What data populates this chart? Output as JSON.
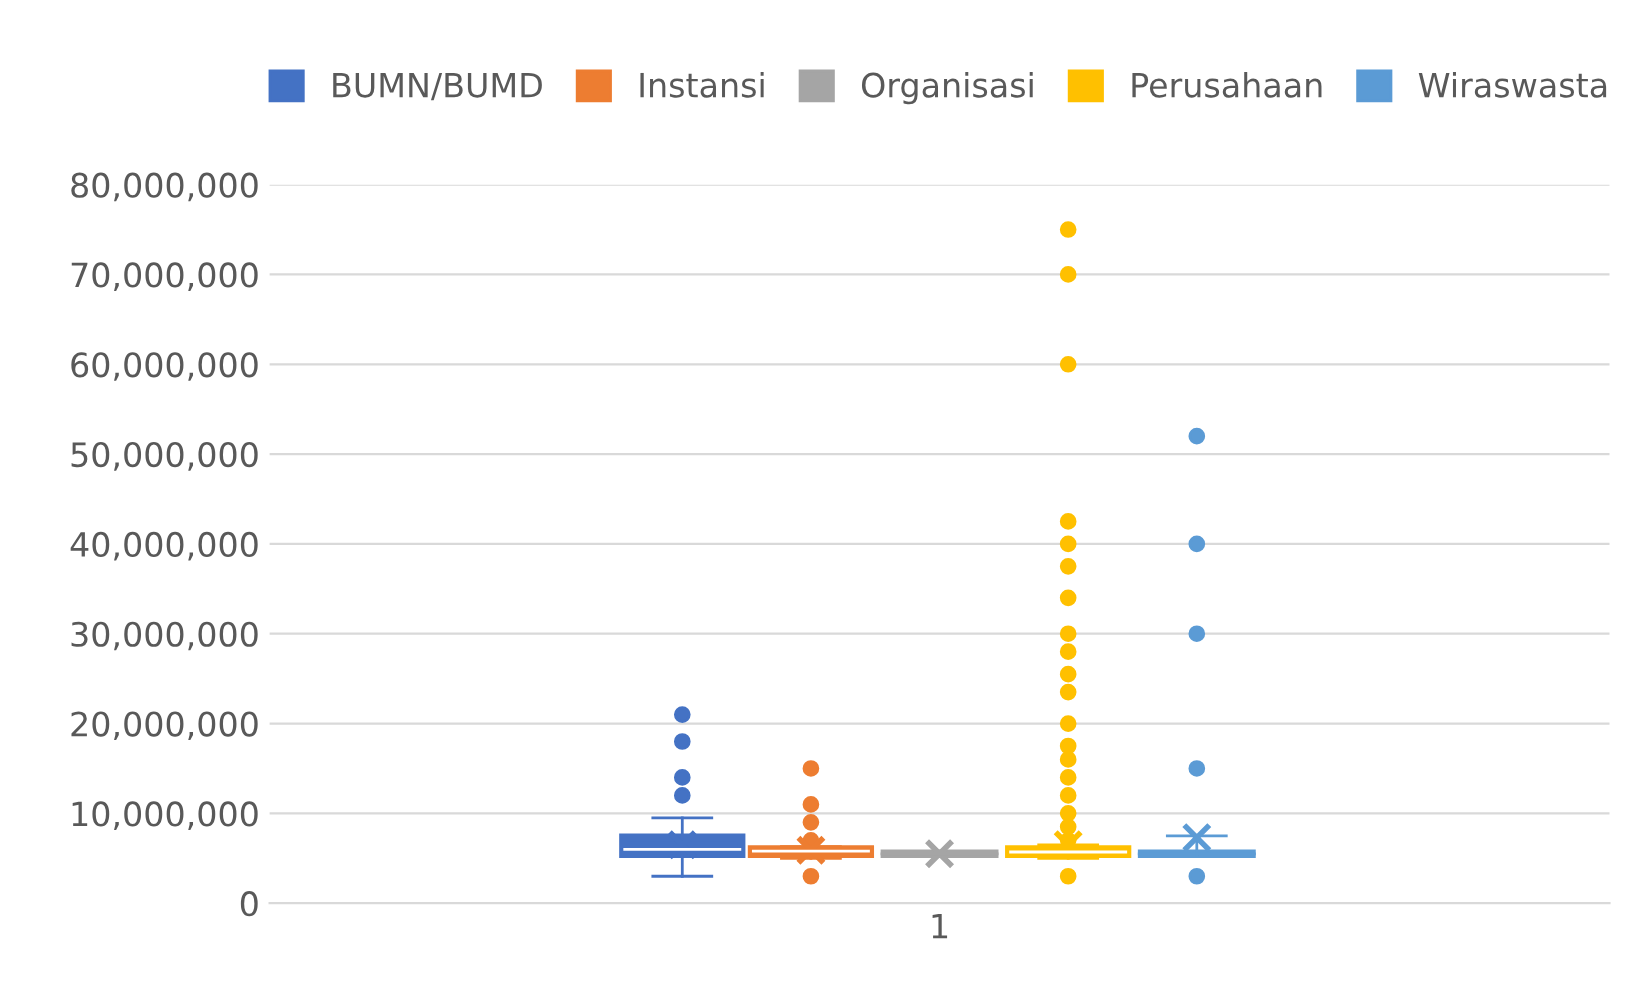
{
  "chart_data": {
    "type": "box",
    "categories": [
      "1"
    ],
    "series": [
      {
        "name": "BUMN/BUMD",
        "color": "#4472c4",
        "boxes": [
          {
            "low": 3000000,
            "q1": 5500000,
            "median": 6000000,
            "q3": 7300000,
            "high": 9500000,
            "mean": 6500000,
            "outliers": [
              12000000,
              14000000,
              18000000,
              21000000
            ]
          }
        ]
      },
      {
        "name": "Instansi",
        "color": "#ed7d31",
        "boxes": [
          {
            "low": 5000000,
            "q1": 5500000,
            "median": 5800000,
            "q3": 6000000,
            "high": 6300000,
            "mean": 5900000,
            "outliers": [
              3000000,
              7000000,
              9000000,
              11000000,
              15000000
            ]
          }
        ]
      },
      {
        "name": "Organisasi",
        "color": "#a5a5a5",
        "boxes": [
          {
            "low": 5500000,
            "q1": 5500000,
            "median": 5500000,
            "q3": 5500000,
            "high": 5500000,
            "mean": 5500000
          }
        ]
      },
      {
        "name": "Perusahaan",
        "color": "#ffc000",
        "boxes": [
          {
            "low": 5000000,
            "q1": 5500000,
            "median": 5700000,
            "q3": 6000000,
            "high": 6500000,
            "mean": 6500000,
            "outliers": [
              3000000,
              7000000,
              8500000,
              10000000,
              12000000,
              14000000,
              16000000,
              17500000,
              20000000,
              23500000,
              25500000,
              28000000,
              30000000,
              34000000,
              37500000,
              40000000,
              42500000,
              60000000,
              70000000,
              75000000
            ]
          }
        ]
      },
      {
        "name": "Wiraswasta",
        "color": "#5b9bd5",
        "boxes": [
          {
            "low": 5500000,
            "q1": 5500000,
            "median": 5500000,
            "q3": 5500000,
            "high": 7500000,
            "mean": 7300000,
            "outliers": [
              3000000,
              15000000,
              30000000,
              40000000,
              52000000
            ]
          }
        ]
      }
    ],
    "ylim": [
      0,
      80000000
    ],
    "yticks": [
      {
        "value": 0,
        "label": "0"
      },
      {
        "value": 10000000,
        "label": "10,000,000"
      },
      {
        "value": 20000000,
        "label": "20,000,000"
      },
      {
        "value": 30000000,
        "label": "30,000,000"
      },
      {
        "value": 40000000,
        "label": "40,000,000"
      },
      {
        "value": 50000000,
        "label": "50,000,000"
      },
      {
        "value": 60000000,
        "label": "60,000,000"
      },
      {
        "value": 70000000,
        "label": "70,000,000"
      },
      {
        "value": 80000000,
        "label": "80,000,000"
      }
    ],
    "grid": "y",
    "legend": "top"
  }
}
